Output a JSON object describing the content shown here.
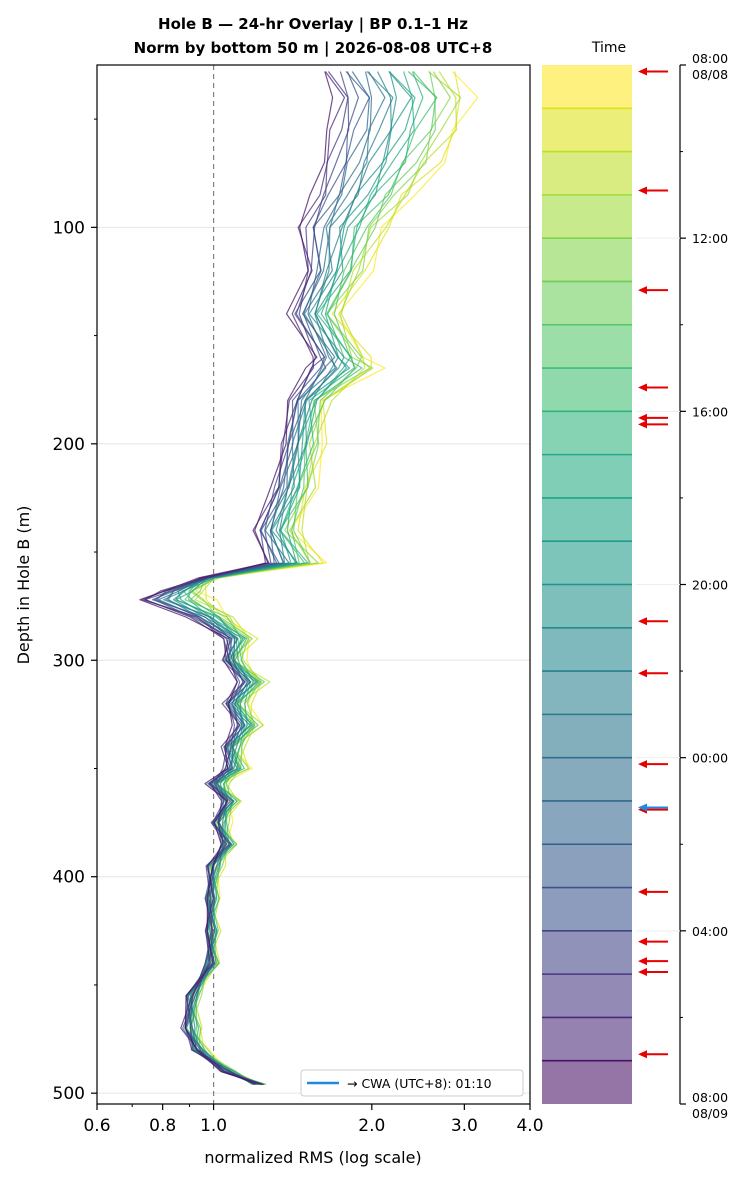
{
  "chart_data": {
    "type": "line",
    "title_line1": "Hole B — 24-hr Overlay  |  BP 0.1–1 Hz",
    "title_line2": "Norm by bottom 50 m  |  2026-08-08 UTC+8",
    "xlabel": "normalized RMS  (log scale)",
    "ylabel": "Depth in Hole B (m)",
    "x_scale": "log",
    "xlim": [
      0.6,
      4.0
    ],
    "ylim": [
      505,
      25
    ],
    "x_ticks": [
      {
        "value": 0.6,
        "label": "0.6"
      },
      {
        "value": 0.8,
        "label": "0.8"
      },
      {
        "value": 1.0,
        "label": "1.0"
      },
      {
        "value": 2.0,
        "label": "2.0"
      },
      {
        "value": 3.0,
        "label": "3.0"
      },
      {
        "value": 4.0,
        "label": "4.0"
      }
    ],
    "y_ticks": [
      {
        "value": 100,
        "label": "100"
      },
      {
        "value": 200,
        "label": "200"
      },
      {
        "value": 300,
        "label": "300"
      },
      {
        "value": 400,
        "label": "400"
      },
      {
        "value": 500,
        "label": "500"
      }
    ],
    "reference_line_x": 1.0,
    "grid": true,
    "legend": {
      "label": "→ CWA (UTC+8): 01:10",
      "color": "#1e88e5",
      "position": "lower-right"
    },
    "earliest_profile": {
      "depth": [
        28,
        40,
        55,
        70,
        85,
        100,
        120,
        140,
        160,
        165,
        180,
        200,
        220,
        240,
        255,
        262,
        268,
        272,
        280,
        290,
        300,
        310,
        320,
        330,
        340,
        350,
        357,
        365,
        375,
        385,
        395,
        410,
        425,
        440,
        455,
        470,
        480,
        490,
        496
      ],
      "rms": [
        2.85,
        3.1,
        2.95,
        2.7,
        2.4,
        2.15,
        1.95,
        1.75,
        1.95,
        2.05,
        1.65,
        1.6,
        1.55,
        1.45,
        1.6,
        1.0,
        0.95,
        0.98,
        1.08,
        1.18,
        1.12,
        1.25,
        1.15,
        1.22,
        1.12,
        1.15,
        1.05,
        1.1,
        1.05,
        1.08,
        1.02,
        1.0,
        1.0,
        1.0,
        0.92,
        0.93,
        0.95,
        1.08,
        1.22
      ]
    },
    "latest_profile": {
      "depth": [
        28,
        40,
        55,
        70,
        85,
        100,
        120,
        140,
        160,
        165,
        180,
        200,
        220,
        240,
        255,
        262,
        268,
        272,
        280,
        290,
        300,
        310,
        320,
        330,
        340,
        350,
        357,
        365,
        375,
        385,
        395,
        410,
        425,
        440,
        455,
        470,
        480,
        490,
        496
      ],
      "rms": [
        1.6,
        1.7,
        1.65,
        1.6,
        1.55,
        1.45,
        1.5,
        1.4,
        1.55,
        1.5,
        1.4,
        1.35,
        1.3,
        1.2,
        1.25,
        0.95,
        0.8,
        0.72,
        0.9,
        1.05,
        1.05,
        1.12,
        1.05,
        1.1,
        1.05,
        1.05,
        0.98,
        1.05,
        1.0,
        1.05,
        0.98,
        0.98,
        0.98,
        0.98,
        0.9,
        0.88,
        0.92,
        1.05,
        1.22
      ]
    },
    "n_profiles": 24,
    "colorbar": {
      "label": "Time",
      "top_label_time": "08:00",
      "top_label_date": "08/08",
      "bottom_label_time": "08:00",
      "bottom_label_date": "08/09",
      "ticks": [
        {
          "hours": 4,
          "label": "12:00"
        },
        {
          "hours": 8,
          "label": "16:00"
        },
        {
          "hours": 12,
          "label": "20:00"
        },
        {
          "hours": 16,
          "label": "00:00"
        },
        {
          "hours": 20,
          "label": "04:00"
        }
      ],
      "n_bins": 24,
      "colors": [
        "#fde725",
        "#dde318",
        "#bddf26",
        "#9fda3a",
        "#84d44b",
        "#6ccd5a",
        "#55c667",
        "#40bd72",
        "#2fb47c",
        "#25ab82",
        "#20a386",
        "#1f998a",
        "#21918c",
        "#24878e",
        "#277f8e",
        "#2a768e",
        "#2e6e8e",
        "#32658e",
        "#365c8d",
        "#3b528b",
        "#414487",
        "#453781",
        "#482878",
        "#471164"
      ],
      "event_hours": [
        0.15,
        2.9,
        5.2,
        7.45,
        8.15,
        8.3,
        12.85,
        14.05,
        16.15,
        17.2,
        19.1,
        20.25,
        20.7,
        20.95,
        22.85
      ],
      "highlight_event_hours": 17.15,
      "event_color": "#e60000",
      "highlight_color": "#1e88e5"
    }
  }
}
